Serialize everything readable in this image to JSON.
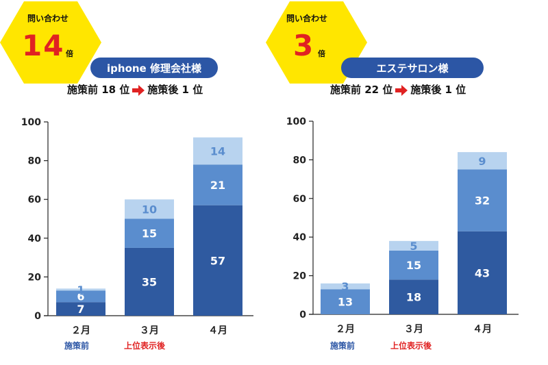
{
  "colors": {
    "dark": "#2f5aa0",
    "mid": "#5a8dce",
    "light": "#b8d3ef",
    "badge": "#ffe600",
    "pill": "#2c56a5",
    "red": "#e02222",
    "blue_caption": "#2c56a5"
  },
  "panels": [
    {
      "badge": {
        "title": "問い合わせ",
        "number": "14",
        "unit": "倍"
      },
      "company": "iphone 修理会社様",
      "rank_before": "施策前 18 位",
      "rank_after": "施策後 1 位",
      "captions": {
        "before": "施策前",
        "after": "上位表示後"
      }
    },
    {
      "badge": {
        "title": "問い合わせ",
        "number": "3",
        "unit": "倍"
      },
      "company": "エステサロン様",
      "rank_before": "施策前 22 位",
      "rank_after": "施策後 1 位",
      "captions": {
        "before": "施策前",
        "after": "上位表示後"
      }
    }
  ],
  "chart_data": [
    {
      "type": "bar",
      "stacked": true,
      "categories": [
        "２月",
        "３月",
        "４月"
      ],
      "ylim": [
        0,
        100
      ],
      "yticks": [
        0,
        20,
        40,
        60,
        80,
        100
      ],
      "series": [
        {
          "values": [
            7,
            35,
            57
          ]
        },
        {
          "values": [
            6,
            15,
            21
          ]
        },
        {
          "values": [
            1,
            10,
            14
          ]
        }
      ]
    },
    {
      "type": "bar",
      "stacked": true,
      "categories": [
        "２月",
        "３月",
        "４月"
      ],
      "ylim": [
        0,
        100
      ],
      "yticks": [
        0,
        20,
        40,
        60,
        80,
        100
      ],
      "series": [
        {
          "values": [
            0,
            18,
            43
          ]
        },
        {
          "values": [
            13,
            15,
            32
          ]
        },
        {
          "values": [
            3,
            5,
            9
          ]
        }
      ]
    }
  ]
}
